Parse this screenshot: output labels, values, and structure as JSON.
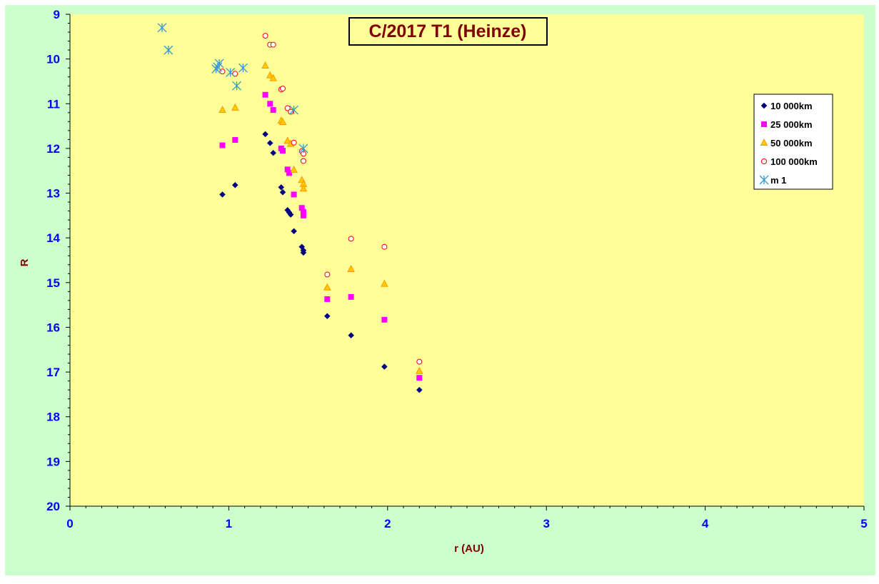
{
  "chart_data": {
    "type": "scatter",
    "title": "C/2017 T1 (Heinze)",
    "xlabel": "r (AU)",
    "ylabel": "R",
    "xlim": [
      0,
      5
    ],
    "ylim": [
      9,
      20
    ],
    "y_inverted": true,
    "x_ticks": [
      "0",
      "1",
      "2",
      "3",
      "4",
      "5"
    ],
    "y_ticks": [
      "9",
      "10",
      "11",
      "12",
      "13",
      "14",
      "15",
      "16",
      "17",
      "18",
      "19",
      "20"
    ],
    "grid": false,
    "legend_position": "top-right",
    "colors": {
      "figure_background": "#ccffcc",
      "plot_background": "#ffff99",
      "axis_tick_labels": "#0000ff",
      "axis_titles": "#800000",
      "title_text": "#800000"
    },
    "series": [
      {
        "name": "10 000km",
        "marker": "diamond",
        "color": "#000080",
        "points": [
          [
            0.96,
            13.03
          ],
          [
            1.04,
            12.82
          ],
          [
            1.23,
            11.68
          ],
          [
            1.26,
            11.88
          ],
          [
            1.28,
            12.1
          ],
          [
            1.33,
            12.87
          ],
          [
            1.34,
            12.98
          ],
          [
            1.37,
            13.38
          ],
          [
            1.38,
            13.43
          ],
          [
            1.39,
            13.48
          ],
          [
            1.41,
            13.85
          ],
          [
            1.46,
            14.2
          ],
          [
            1.47,
            14.28
          ],
          [
            1.47,
            14.33
          ],
          [
            1.62,
            15.75
          ],
          [
            1.77,
            16.18
          ],
          [
            1.98,
            16.88
          ],
          [
            2.2,
            17.4
          ]
        ]
      },
      {
        "name": "25 000km",
        "marker": "square",
        "color": "#ff00ff",
        "points": [
          [
            0.96,
            11.93
          ],
          [
            1.04,
            11.81
          ],
          [
            1.23,
            10.8
          ],
          [
            1.26,
            11.0
          ],
          [
            1.28,
            11.14
          ],
          [
            1.33,
            12.0
          ],
          [
            1.34,
            12.05
          ],
          [
            1.37,
            12.47
          ],
          [
            1.38,
            12.55
          ],
          [
            1.41,
            13.03
          ],
          [
            1.46,
            13.33
          ],
          [
            1.47,
            13.42
          ],
          [
            1.47,
            13.5
          ],
          [
            1.62,
            15.37
          ],
          [
            1.77,
            15.32
          ],
          [
            1.98,
            15.83
          ],
          [
            2.2,
            17.13
          ]
        ]
      },
      {
        "name": "50 000km",
        "marker": "triangle",
        "color": "#ff9900",
        "fill": "#ffcc00",
        "points": [
          [
            0.96,
            11.14
          ],
          [
            1.04,
            11.09
          ],
          [
            1.23,
            10.15
          ],
          [
            1.26,
            10.37
          ],
          [
            1.28,
            10.43
          ],
          [
            1.33,
            11.38
          ],
          [
            1.34,
            11.41
          ],
          [
            1.37,
            11.83
          ],
          [
            1.39,
            11.9
          ],
          [
            1.41,
            12.48
          ],
          [
            1.46,
            12.71
          ],
          [
            1.47,
            12.8
          ],
          [
            1.47,
            12.9
          ],
          [
            1.62,
            15.11
          ],
          [
            1.77,
            14.7
          ],
          [
            1.98,
            15.03
          ],
          [
            2.2,
            16.98
          ]
        ]
      },
      {
        "name": "100 000km",
        "marker": "circle",
        "color": "#ff0000",
        "points": [
          [
            0.96,
            10.28
          ],
          [
            1.04,
            10.33
          ],
          [
            1.23,
            9.48
          ],
          [
            1.26,
            9.68
          ],
          [
            1.28,
            9.68
          ],
          [
            1.33,
            10.68
          ],
          [
            1.34,
            10.66
          ],
          [
            1.37,
            11.1
          ],
          [
            1.39,
            11.18
          ],
          [
            1.41,
            11.87
          ],
          [
            1.46,
            12.06
          ],
          [
            1.47,
            12.12
          ],
          [
            1.47,
            12.28
          ],
          [
            1.62,
            14.82
          ],
          [
            1.77,
            14.02
          ],
          [
            1.98,
            14.2
          ],
          [
            2.2,
            16.77
          ]
        ]
      },
      {
        "name": "m 1",
        "marker": "asterisk",
        "color": "#3399cc",
        "points": [
          [
            0.58,
            9.3
          ],
          [
            0.62,
            9.8
          ],
          [
            0.92,
            10.22
          ],
          [
            0.94,
            10.1
          ],
          [
            0.93,
            10.18
          ],
          [
            1.01,
            10.3
          ],
          [
            1.05,
            10.6
          ],
          [
            1.09,
            10.2
          ],
          [
            1.41,
            11.14
          ],
          [
            1.47,
            12.0
          ]
        ]
      }
    ]
  }
}
